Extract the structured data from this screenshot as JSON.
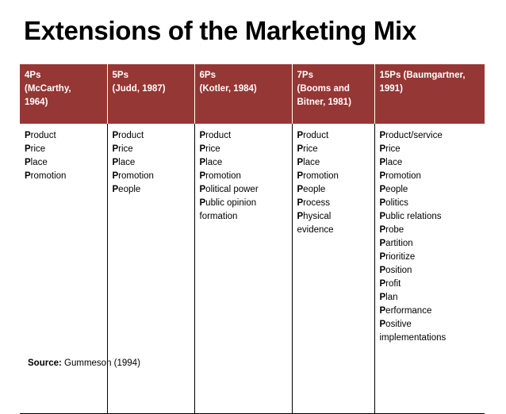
{
  "title": "Extensions of the Marketing Mix",
  "columns": [
    {
      "header": [
        "4Ps",
        "(McCarthy,",
        "1964)"
      ],
      "items": [
        [
          "P",
          "roduct"
        ],
        [
          "P",
          "rice"
        ],
        [
          "P",
          "lace"
        ],
        [
          "P",
          "romotion"
        ]
      ]
    },
    {
      "header": [
        "5Ps",
        "(Judd, 1987)"
      ],
      "items": [
        [
          "P",
          "roduct"
        ],
        [
          "P",
          "rice"
        ],
        [
          "P",
          "lace"
        ],
        [
          "P",
          "romotion"
        ],
        [
          "P",
          "eople"
        ]
      ]
    },
    {
      "header": [
        "6Ps",
        "(Kotler, 1984)"
      ],
      "items": [
        [
          "P",
          "roduct"
        ],
        [
          "P",
          "rice"
        ],
        [
          "P",
          "lace"
        ],
        [
          "P",
          "romotion"
        ],
        [
          "P",
          "olitical power"
        ],
        [
          "P",
          "ublic opinion"
        ],
        [
          "",
          "formation"
        ]
      ]
    },
    {
      "header": [
        "7Ps",
        "(Booms and",
        "Bitner, 1981)"
      ],
      "items": [
        [
          "P",
          "roduct"
        ],
        [
          "P",
          "rice"
        ],
        [
          "P",
          "lace"
        ],
        [
          "P",
          "romotion"
        ],
        [
          "P",
          "eople"
        ],
        [
          "P",
          "rocess"
        ],
        [
          "P",
          "hysical"
        ],
        [
          "",
          "evidence"
        ]
      ]
    },
    {
      "header": [
        "15Ps (Baumgartner,",
        "1991)"
      ],
      "items": [
        [
          "P",
          "roduct/service"
        ],
        [
          "P",
          "rice"
        ],
        [
          "P",
          "lace"
        ],
        [
          "P",
          "romotion"
        ],
        [
          "P",
          "eople"
        ],
        [
          "P",
          "olitics"
        ],
        [
          "P",
          "ublic relations"
        ],
        [
          "P",
          "robe"
        ],
        [
          "P",
          "artition"
        ],
        [
          "P",
          "rioritize"
        ],
        [
          "P",
          "osition"
        ],
        [
          "P",
          "rofit"
        ],
        [
          "P",
          "lan"
        ],
        [
          "P",
          "erformance"
        ],
        [
          "P",
          "ositive"
        ],
        [
          "",
          "implementations"
        ]
      ]
    }
  ],
  "source": {
    "label": "Source:",
    "value": "Gummeson (1994)"
  },
  "colors": {
    "header_background": "#953735",
    "header_text": "#ffffff"
  }
}
